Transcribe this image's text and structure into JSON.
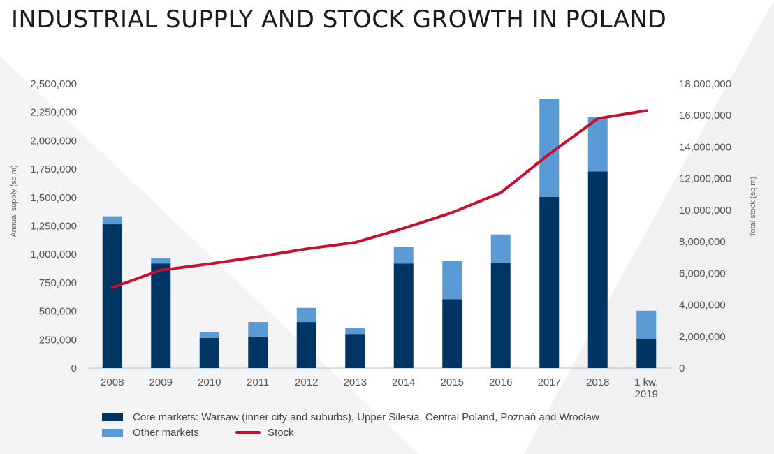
{
  "chart_data": {
    "type": "bar",
    "stacked": true,
    "title": "INDUSTRIAL SUPPLY AND STOCK GROWTH IN POLAND",
    "ylabel": "Annual supply (sq m)",
    "y2label": "Total stock (sq m)",
    "ylim": [
      0,
      2500000
    ],
    "y2lim": [
      0,
      18000000
    ],
    "yticks": [
      "0",
      "250,000",
      "500,000",
      "750,000",
      "1,000,000",
      "1,250,000",
      "1,500,000",
      "1,750,000",
      "2,000,000",
      "2,250,000",
      "2,500,000"
    ],
    "y2ticks": [
      "0",
      "2,000,000",
      "4,000,000",
      "6,000,000",
      "8,000,000",
      "10,000,000",
      "12,000,000",
      "14,000,000",
      "16,000,000",
      "18,000,000"
    ],
    "categories": [
      "2008",
      "2009",
      "2010",
      "2011",
      "2012",
      "2013",
      "2014",
      "2015",
      "2016",
      "2017",
      "2018",
      "1 kw.\n2019"
    ],
    "series": [
      {
        "name": "Core markets: Warsaw (inner city and suburbs), Upper Silesia, Central Poland, Poznań and Wrocław",
        "color": "#003462",
        "values": [
          1265000,
          920000,
          265000,
          275000,
          405000,
          300000,
          920000,
          605000,
          925000,
          1505000,
          1730000,
          260000
        ]
      },
      {
        "name": "Other markets",
        "color": "#5b9bd5",
        "values": [
          70000,
          50000,
          50000,
          130000,
          125000,
          50000,
          145000,
          335000,
          250000,
          860000,
          480000,
          245000
        ]
      },
      {
        "name": "Stock",
        "type": "line",
        "axis": "right",
        "color": "#c8102e",
        "values": [
          5100000,
          6200000,
          6600000,
          7050000,
          7550000,
          7950000,
          8850000,
          9850000,
          11100000,
          13550000,
          15800000,
          16300000
        ]
      }
    ],
    "legend": "bottom",
    "grid": false
  }
}
